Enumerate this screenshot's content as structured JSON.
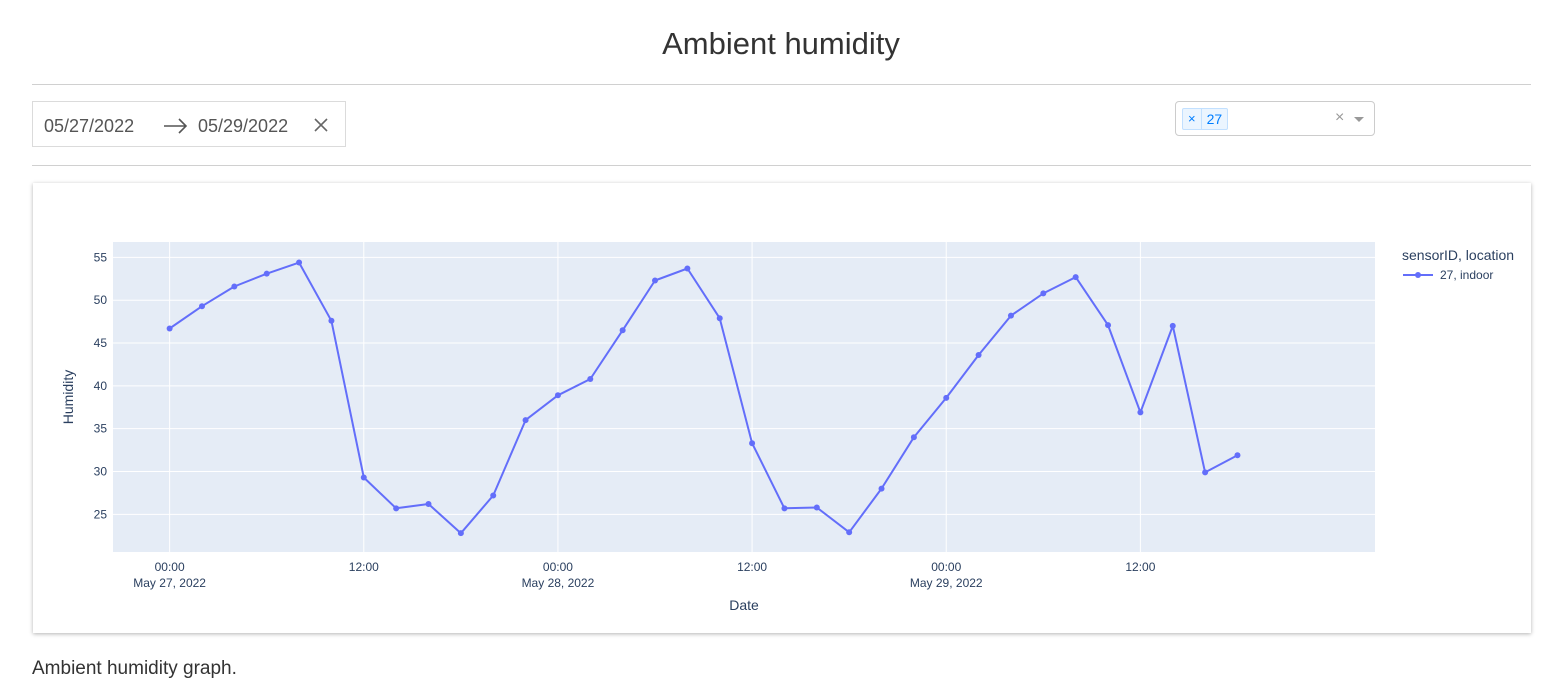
{
  "page": {
    "title": "Ambient humidity",
    "caption": "Ambient humidity graph."
  },
  "date_range": {
    "start": "05/27/2022",
    "end": "05/29/2022",
    "separator_icon": "arrow-right-icon",
    "clear_icon": "close-icon"
  },
  "sensor_select": {
    "selected": [
      "27"
    ],
    "remove_symbol": "×",
    "clear_symbol": "×",
    "dropdown_icon": "caret-down-icon"
  },
  "colors": {
    "series": "#636efa",
    "plot_bg": "#e5ecf6",
    "grid": "#ffffff",
    "text": "#2a3f5f"
  },
  "chart_data": {
    "type": "line",
    "xlabel": "Date",
    "ylabel": "Humidity",
    "legend_title": "sensorID, location",
    "legend_position": "top-right",
    "xlim": [
      "2022-05-26 20:30",
      "2022-05-30 02:30"
    ],
    "ylim": [
      20.6,
      56.8
    ],
    "yticks": [
      25,
      30,
      35,
      40,
      45,
      50,
      55
    ],
    "xticks": [
      {
        "t": "2022-05-27 00:00",
        "label": "00:00",
        "sublabel": "May 27, 2022"
      },
      {
        "t": "2022-05-27 12:00",
        "label": "12:00",
        "sublabel": ""
      },
      {
        "t": "2022-05-28 00:00",
        "label": "00:00",
        "sublabel": "May 28, 2022"
      },
      {
        "t": "2022-05-28 12:00",
        "label": "12:00",
        "sublabel": ""
      },
      {
        "t": "2022-05-29 00:00",
        "label": "00:00",
        "sublabel": "May 29, 2022"
      },
      {
        "t": "2022-05-29 12:00",
        "label": "12:00",
        "sublabel": ""
      }
    ],
    "grid": true,
    "series": [
      {
        "name": "27, indoor",
        "x": [
          "2022-05-27 00:00",
          "2022-05-27 02:00",
          "2022-05-27 04:00",
          "2022-05-27 06:00",
          "2022-05-27 08:00",
          "2022-05-27 10:00",
          "2022-05-27 12:00",
          "2022-05-27 14:00",
          "2022-05-27 16:00",
          "2022-05-27 18:00",
          "2022-05-27 20:00",
          "2022-05-27 22:00",
          "2022-05-28 00:00",
          "2022-05-28 02:00",
          "2022-05-28 04:00",
          "2022-05-28 06:00",
          "2022-05-28 08:00",
          "2022-05-28 10:00",
          "2022-05-28 12:00",
          "2022-05-28 14:00",
          "2022-05-28 16:00",
          "2022-05-28 18:00",
          "2022-05-28 20:00",
          "2022-05-28 22:00",
          "2022-05-29 00:00",
          "2022-05-29 02:00",
          "2022-05-29 04:00",
          "2022-05-29 06:00",
          "2022-05-29 08:00",
          "2022-05-29 10:00",
          "2022-05-29 12:00",
          "2022-05-29 14:00",
          "2022-05-29 16:00",
          "2022-05-29 18:00"
        ],
        "y": [
          46.7,
          49.3,
          51.6,
          53.1,
          54.4,
          47.6,
          29.3,
          25.7,
          26.2,
          22.8,
          27.2,
          36.0,
          38.9,
          40.8,
          46.5,
          52.3,
          53.7,
          47.9,
          33.3,
          25.7,
          25.8,
          22.9,
          28.0,
          34.0,
          38.6,
          43.6,
          48.2,
          50.8,
          52.7,
          47.1,
          36.9,
          47.0,
          29.9,
          31.9
        ]
      }
    ]
  }
}
